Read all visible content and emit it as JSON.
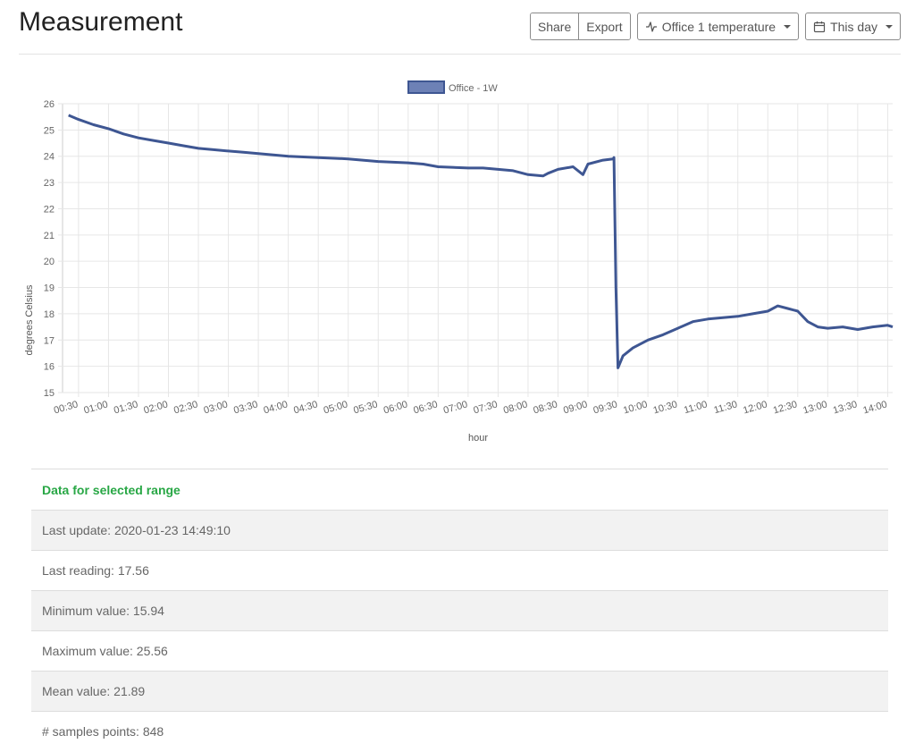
{
  "header": {
    "title": "Measurement",
    "share_label": "Share",
    "export_label": "Export",
    "sensor_label": "Office 1 temperature",
    "range_label": "This day",
    "sensor_icon": "activity-icon",
    "range_icon": "calendar-icon"
  },
  "colors": {
    "series": "#3e5692",
    "legend_fill": "#6d81b6",
    "accent_green": "#28a745"
  },
  "chart_data": {
    "type": "line",
    "xlabel": "hour",
    "ylabel": "degrees Celsius",
    "ylim": [
      15,
      26
    ],
    "yticks": [
      15,
      16,
      17,
      18,
      19,
      20,
      21,
      22,
      23,
      24,
      25,
      26
    ],
    "xticks": [
      "00:30",
      "01:00",
      "01:30",
      "02:00",
      "02:30",
      "03:00",
      "03:30",
      "04:00",
      "04:30",
      "05:00",
      "05:30",
      "06:00",
      "06:30",
      "07:00",
      "07:30",
      "08:00",
      "08:30",
      "09:00",
      "09:30",
      "10:00",
      "10:30",
      "11:00",
      "11:30",
      "12:00",
      "12:30",
      "13:00",
      "13:30",
      "14:00"
    ],
    "grid": true,
    "legend_position": "top-center",
    "series": [
      {
        "name": "Office - 1W",
        "x": [
          "00:20",
          "00:30",
          "00:45",
          "01:00",
          "01:15",
          "01:30",
          "01:45",
          "02:00",
          "02:15",
          "02:30",
          "02:45",
          "03:00",
          "03:15",
          "03:30",
          "03:45",
          "04:00",
          "04:30",
          "05:00",
          "05:30",
          "06:00",
          "06:15",
          "06:30",
          "07:00",
          "07:15",
          "07:30",
          "07:45",
          "08:00",
          "08:15",
          "08:20",
          "08:30",
          "08:45",
          "08:55",
          "09:00",
          "09:15",
          "09:25",
          "09:26",
          "09:28",
          "09:30",
          "09:35",
          "09:45",
          "10:00",
          "10:15",
          "10:30",
          "10:45",
          "11:00",
          "11:15",
          "11:30",
          "11:45",
          "12:00",
          "12:10",
          "12:20",
          "12:30",
          "12:40",
          "12:50",
          "13:00",
          "13:15",
          "13:30",
          "13:45",
          "14:00",
          "14:05"
        ],
        "y": [
          25.56,
          25.4,
          25.2,
          25.05,
          24.85,
          24.7,
          24.6,
          24.5,
          24.4,
          24.3,
          24.25,
          24.2,
          24.15,
          24.1,
          24.05,
          24.0,
          23.95,
          23.9,
          23.8,
          23.75,
          23.7,
          23.6,
          23.55,
          23.55,
          23.5,
          23.45,
          23.3,
          23.25,
          23.35,
          23.5,
          23.6,
          23.3,
          23.7,
          23.85,
          23.9,
          23.95,
          19.0,
          15.94,
          16.4,
          16.7,
          17.0,
          17.2,
          17.45,
          17.7,
          17.8,
          17.85,
          17.9,
          18.0,
          18.1,
          18.3,
          18.2,
          18.1,
          17.7,
          17.5,
          17.45,
          17.5,
          17.4,
          17.5,
          17.56,
          17.5
        ]
      }
    ]
  },
  "stats": {
    "heading": "Data for selected range",
    "last_update": "Last update: 2020-01-23 14:49:10",
    "last_reading": "Last reading: 17.56",
    "minimum": "Minimum value: 15.94",
    "maximum": "Maximum value: 25.56",
    "mean": "Mean value: 21.89",
    "data_points": "# samples points: 848"
  }
}
